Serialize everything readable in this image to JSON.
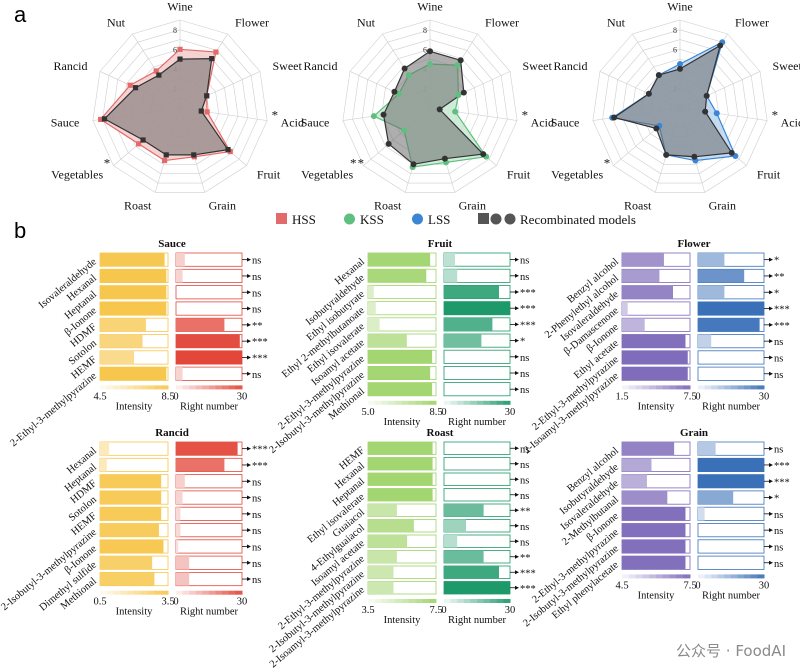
{
  "panel_labels": {
    "a": "a",
    "b": "b"
  },
  "colors": {
    "hss": "#e36a6a",
    "kss": "#5fbf7e",
    "lss": "#3a86d4",
    "rec": "#555555",
    "sauce_int": "#f7c64a",
    "sauce_rn": "#e2473a",
    "fruit_int": "#9fd36a",
    "fruit_rn": "#1e9a6a",
    "flower_int": "#7c68b8",
    "flower_rn": "#3a70b8",
    "grid": "#cfcfcf"
  },
  "radar": {
    "axes": [
      "Wine",
      "Flower",
      "Sweet",
      "Acid",
      "Fruit",
      "Grain",
      "Roast",
      "Vegetables",
      "Sauce",
      "Rancid",
      "Nut"
    ],
    "ticks": [
      "2",
      "4",
      "6",
      "8"
    ],
    "rmax": 9,
    "rec_label": "Recombinated models",
    "charts": [
      {
        "name": "HSS",
        "color_key": "hss",
        "base": [
          6.0,
          6.8,
          3.0,
          2.8,
          6.8,
          5.2,
          5.6,
          5.6,
          8.2,
          5.6,
          4.5
        ],
        "rec": [
          5.0,
          6.0,
          3.0,
          2.2,
          6.5,
          5.0,
          5.0,
          5.0,
          7.8,
          5.0,
          4.0
        ],
        "stars": [
          "",
          "",
          "",
          "*",
          "",
          "",
          "",
          "*",
          "",
          "",
          ""
        ]
      },
      {
        "name": "KSS",
        "color_key": "kss",
        "base": [
          4.5,
          5.2,
          3.2,
          2.6,
          7.6,
          5.8,
          6.3,
          3.5,
          5.8,
          3.5,
          4.0
        ],
        "rec": [
          5.8,
          5.8,
          3.8,
          1.0,
          7.2,
          5.4,
          6.0,
          5.6,
          4.8,
          4.0,
          4.8
        ],
        "stars": [
          "",
          "",
          "",
          "*",
          "",
          "",
          "",
          "* *",
          "",
          "",
          ""
        ]
      },
      {
        "name": "LSS",
        "color_key": "lss",
        "base": [
          4.5,
          8.0,
          3.0,
          3.8,
          7.5,
          5.6,
          5.0,
          2.8,
          7.0,
          3.5,
          4.0
        ],
        "rec": [
          4.0,
          7.6,
          3.0,
          2.6,
          7.0,
          5.2,
          5.0,
          3.2,
          6.8,
          3.5,
          4.0
        ],
        "stars": [
          "",
          "",
          "",
          "*",
          "",
          "",
          "",
          "*",
          "",
          "",
          ""
        ]
      }
    ]
  },
  "legend": [
    "HSS",
    "KSS",
    "LSS",
    "Recombinated models"
  ],
  "bar_panels": [
    {
      "title": "Sauce",
      "int_key": "sauce_int",
      "rn_key": "sauce_rn",
      "int_min": 4.5,
      "int_max": 8.5,
      "int_ticks": [
        "4.5",
        "8.5"
      ],
      "rn_ticks": [
        "0",
        "30"
      ],
      "xlabel_int": "Intensity",
      "xlabel_rn": "Right number",
      "compounds": [
        "Isovaleraldehyde",
        "Hexanal",
        "Heptanal",
        "β-Ionone",
        "HDMF",
        "Sotolon",
        "HEMF",
        "2-Ethyl-3-methylpyrazine"
      ],
      "intensity": [
        8.3,
        8.4,
        8.4,
        8.4,
        7.2,
        7.0,
        6.5,
        8.4
      ],
      "right": [
        4,
        3,
        0,
        0,
        22,
        29,
        30,
        3
      ],
      "sig": [
        "ns",
        "ns",
        "ns",
        "ns",
        "**",
        "***",
        "***",
        "ns"
      ]
    },
    {
      "title": "Fruit",
      "int_key": "fruit_int",
      "rn_key": "fruit_rn",
      "int_min": 5.0,
      "int_max": 8.5,
      "int_ticks": [
        "5.0",
        "8.5"
      ],
      "rn_ticks": [
        "0",
        "30"
      ],
      "xlabel_int": "Intensity",
      "xlabel_rn": "Right number",
      "compounds": [
        "Hexanal",
        "Isobutyraldehyde",
        "Ethyl isobutyrate",
        "Ethyl 2-methylbutanoate",
        "Ethyl isovalerate",
        "Isoamyl acetate",
        "2-Ethyl-3-methylpyrazine",
        "2-Isobutyl-3-methylpyrazine",
        "Methional"
      ],
      "intensity": [
        8.2,
        8.0,
        5.3,
        5.4,
        5.6,
        7.0,
        8.3,
        8.2,
        8.3
      ],
      "right": [
        5,
        6,
        25,
        30,
        22,
        17,
        0,
        0,
        0
      ],
      "sig": [
        "ns",
        "ns",
        "***",
        "***",
        "***",
        "*",
        "ns",
        "ns",
        "ns"
      ]
    },
    {
      "title": "Flower",
      "int_key": "flower_int",
      "rn_key": "flower_rn",
      "int_min": 1.5,
      "int_max": 7.5,
      "int_ticks": [
        "1.5",
        "7.5"
      ],
      "rn_ticks": [
        "0",
        "30"
      ],
      "xlabel_int": "Intensity",
      "xlabel_rn": "Right number",
      "compounds": [
        "Benzyl alcohol",
        "2-Phenylethyl alcohol",
        "Isovaleraldehyde",
        "β-Damascenone",
        "β-Ionone",
        "Ethyl acetate",
        "2-Ethyl-3-methylpyrazine",
        "2-Isoamyl-3-methylpyrazine"
      ],
      "intensity": [
        5.2,
        4.8,
        6.0,
        2.0,
        3.5,
        7.1,
        7.3,
        7.3
      ],
      "right": [
        12,
        21,
        12,
        30,
        28,
        6,
        0,
        0
      ],
      "sig": [
        "*",
        "**",
        "*",
        "***",
        "***",
        "ns",
        "ns",
        "ns"
      ]
    },
    {
      "title": "Rancid",
      "int_key": "sauce_int",
      "rn_key": "sauce_rn",
      "int_min": 0.5,
      "int_max": 3.5,
      "int_ticks": [
        "0.5",
        "3.5"
      ],
      "rn_ticks": [
        "0",
        "30"
      ],
      "xlabel_int": "Intensity",
      "xlabel_rn": "Right number",
      "compounds": [
        "Hexanal",
        "Heptanal",
        "HDMF",
        "Sotolon",
        "HEMF",
        "2-Isobutyl-3-methylpyrazine",
        "β-Ionone",
        "Dimethyl sulfide",
        "Methional"
      ],
      "intensity": [
        0.9,
        0.8,
        3.2,
        3.2,
        3.2,
        3.1,
        3.3,
        2.8,
        2.9
      ],
      "right": [
        28,
        22,
        4,
        3,
        2,
        2,
        1,
        6,
        6
      ],
      "sig": [
        "***",
        "***",
        "ns",
        "ns",
        "ns",
        "ns",
        "ns",
        "ns",
        "ns"
      ]
    },
    {
      "title": "Roast",
      "int_key": "fruit_int",
      "rn_key": "fruit_rn",
      "int_min": 3.5,
      "int_max": 7.5,
      "int_ticks": [
        "3.5",
        "7.5"
      ],
      "rn_ticks": [
        "0",
        "30"
      ],
      "xlabel_int": "Intensity",
      "xlabel_rn": "Right number",
      "compounds": [
        "HEMF",
        "Hexanal",
        "Heptanal",
        "Ethyl isovalerate",
        "Guaiacol",
        "4-Ethylguaiacol",
        "Isoamyl acetate",
        "2-Ethyl-3-methylpyrazine",
        "2-Isobutyl-3-methylpyrazine",
        "2-Isoamyl-3-methylpyrazine"
      ],
      "intensity": [
        7.3,
        7.3,
        7.3,
        7.3,
        5.2,
        6.2,
        5.8,
        5.2,
        5.0,
        5.0
      ],
      "right": [
        0,
        0,
        0,
        0,
        18,
        10,
        6,
        18,
        25,
        30
      ],
      "sig": [
        "ns",
        "ns",
        "ns",
        "ns",
        "**",
        "ns",
        "ns",
        "**",
        "***",
        "***"
      ]
    },
    {
      "title": "Grain",
      "int_key": "flower_int",
      "rn_key": "flower_rn",
      "int_min": 4.5,
      "int_max": 7.5,
      "int_ticks": [
        "4.5",
        "7.5"
      ],
      "rn_ticks": [
        "0",
        "30"
      ],
      "xlabel_int": "Intensity",
      "xlabel_rn": "Right number",
      "compounds": [
        "Benzyl alcohol",
        "Isobutyraldehyde",
        "Isovaleraldehyde",
        "2-Methylbutanal",
        "β-Ionone",
        "2-Ethyl-3-methylpyrazine",
        "2-Isobutyl-3-methylpyrazine",
        "Ethyl phenylacetate"
      ],
      "intensity": [
        6.8,
        5.8,
        5.6,
        6.5,
        7.3,
        7.3,
        7.3,
        7.3
      ],
      "right": [
        8,
        30,
        30,
        16,
        3,
        0,
        0,
        0
      ],
      "sig": [
        "ns",
        "***",
        "***",
        "*",
        "ns",
        "ns",
        "ns",
        "ns"
      ]
    }
  ],
  "watermark": "公众号 · FoodAI"
}
